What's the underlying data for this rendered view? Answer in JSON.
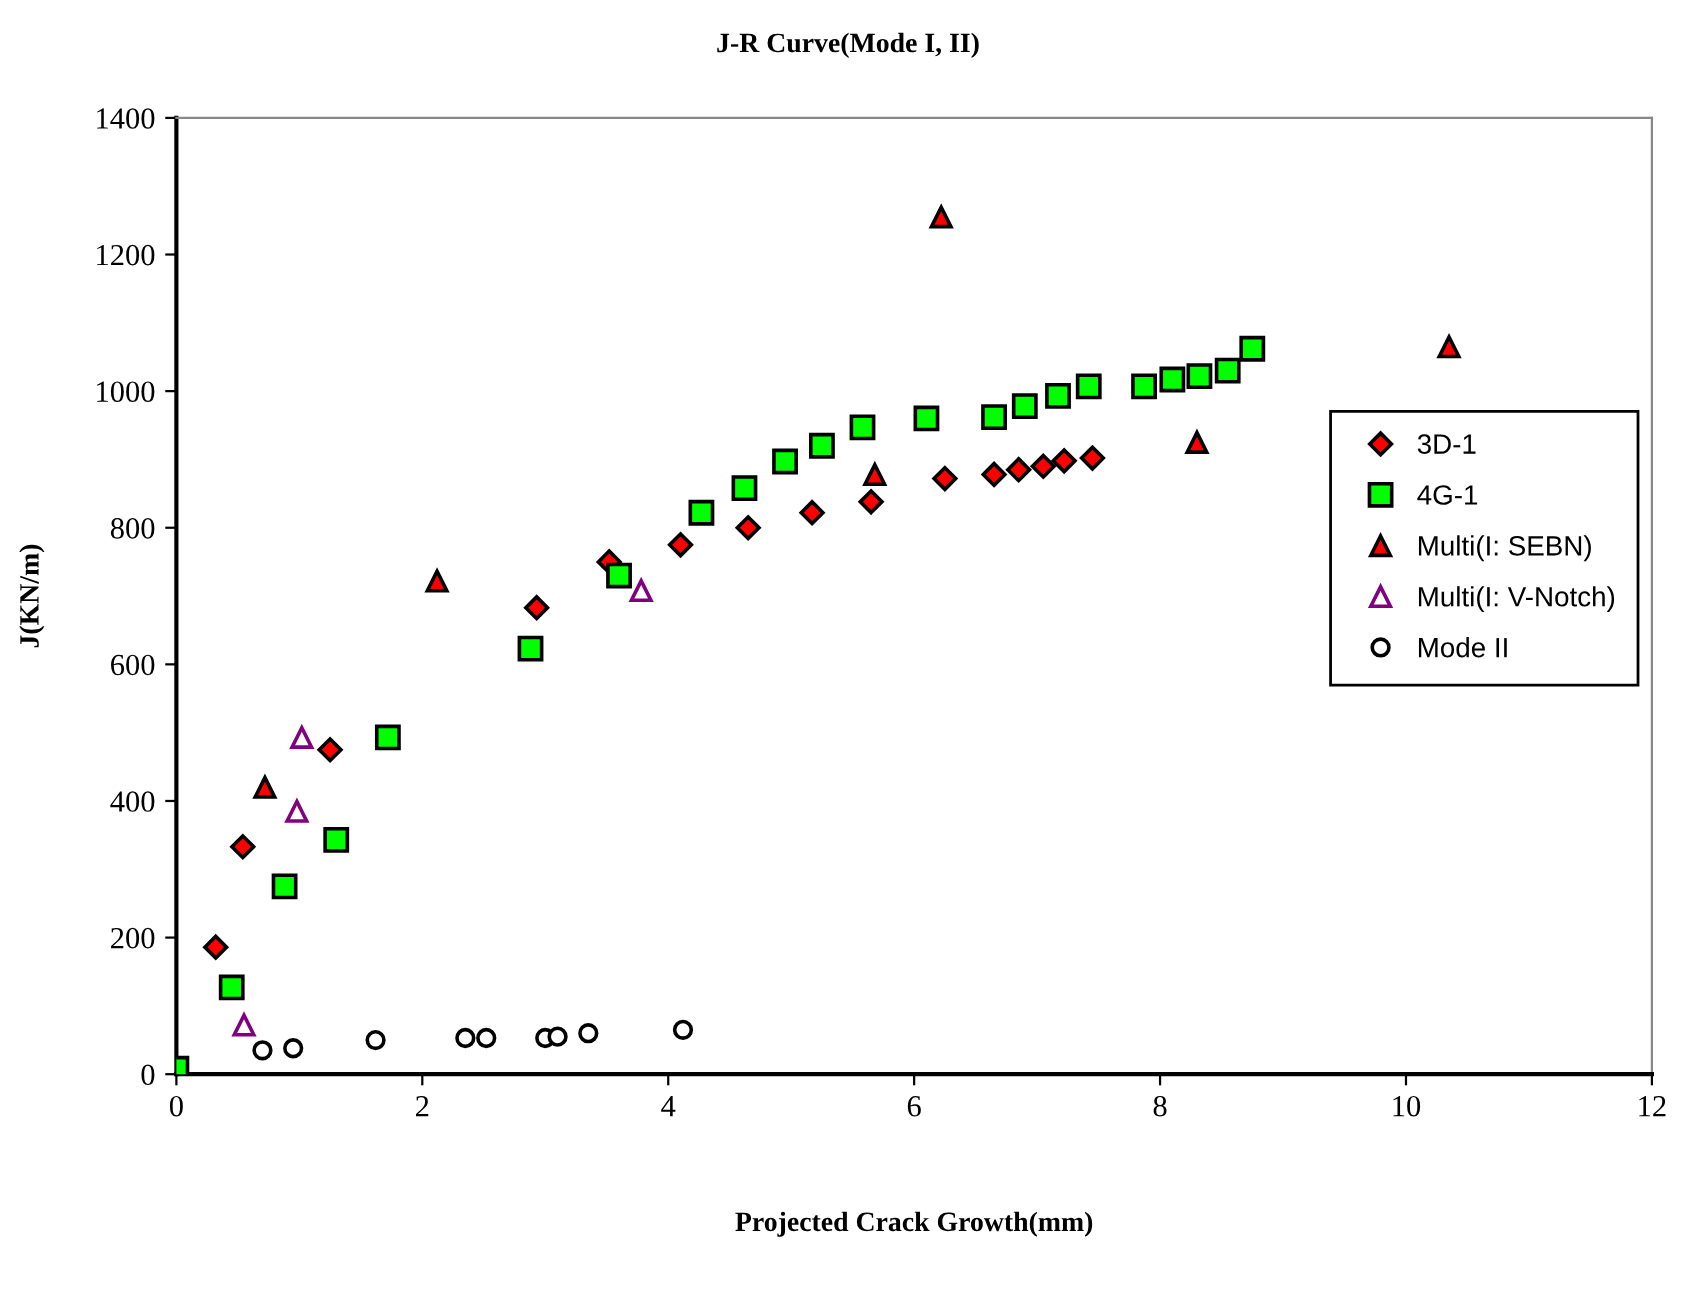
{
  "chart_data": {
    "type": "scatter",
    "title": "J-R Curve(Mode I, II)",
    "xlabel": "Projected Crack Growth(mm)",
    "ylabel": "J(KN/m)",
    "xlim": [
      0,
      12
    ],
    "xticks": [
      0,
      2,
      4,
      6,
      8,
      10,
      12
    ],
    "ylim": [
      0,
      1400
    ],
    "yticks": [
      0,
      200,
      400,
      600,
      800,
      1000,
      1200,
      1400
    ],
    "grid": false,
    "legend": "right",
    "series": [
      {
        "name": "3D-1",
        "color": "#ff0000",
        "marker": "diamond",
        "x": [
          0.32,
          0.54,
          1.25,
          2.93,
          3.52,
          4.1,
          4.65,
          5.17,
          5.65,
          6.25,
          6.65,
          6.85,
          7.05,
          7.22,
          7.45
        ],
        "values": [
          186,
          333,
          475,
          683,
          750,
          775,
          800,
          822,
          838,
          872,
          878,
          885,
          890,
          898,
          902
        ]
      },
      {
        "name": "4G-1",
        "color": "#00ff00",
        "marker": "square",
        "x": [
          0.0,
          0.45,
          0.88,
          1.3,
          1.72,
          2.88,
          3.6,
          4.27,
          4.62,
          4.95,
          5.25,
          5.58,
          6.1,
          6.65,
          6.9,
          7.17,
          7.42,
          7.87,
          8.1,
          8.32,
          8.55,
          8.75
        ],
        "values": [
          8,
          127,
          275,
          343,
          493,
          623,
          730,
          822,
          858,
          897,
          920,
          947,
          960,
          962,
          978,
          993,
          1007,
          1007,
          1017,
          1022,
          1030,
          1062
        ]
      },
      {
        "name": "Multi(I: SEBN)",
        "color": "#ff0000",
        "marker": "triangle",
        "x": [
          0.72,
          2.12,
          5.68,
          6.22,
          8.3,
          10.35
        ],
        "values": [
          420,
          722,
          878,
          1255,
          925,
          1065
        ]
      },
      {
        "name": "Multi(I: V-Notch)",
        "color": "#800080",
        "marker": "triangle",
        "x": [
          0.55,
          0.98,
          1.02,
          3.78
        ],
        "values": [
          72,
          385,
          493,
          708
        ]
      },
      {
        "name": "Mode II",
        "color": "#000000",
        "marker": "circle",
        "x": [
          0.7,
          0.95,
          1.62,
          2.35,
          2.52,
          3.0,
          3.1,
          3.35,
          4.12
        ],
        "values": [
          35,
          38,
          50,
          53,
          53,
          53,
          55,
          60,
          65
        ]
      }
    ]
  }
}
